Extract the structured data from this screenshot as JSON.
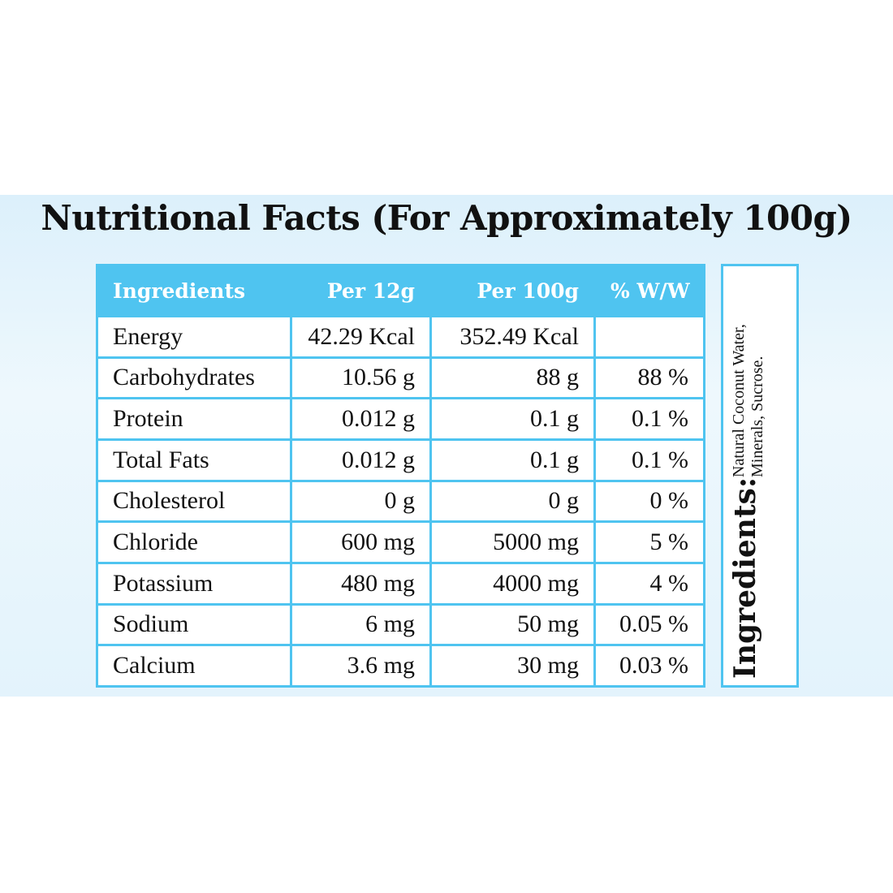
{
  "header": {
    "title": "Nutritional Facts (For Approximately 100g)"
  },
  "table": {
    "columns": [
      "Ingredients",
      "Per 12g",
      "Per 100g",
      "% W/W"
    ],
    "rows": [
      [
        "Energy",
        "42.29 Kcal",
        "352.49 Kcal",
        null
      ],
      [
        "Carbohydrates",
        "10.56 g",
        "88 g",
        "88 %"
      ],
      [
        "Protein",
        "0.012 g",
        "0.1 g",
        "0.1 %"
      ],
      [
        "Total Fats",
        "0.012 g",
        "0.1 g",
        "0.1 %"
      ],
      [
        "Cholesterol",
        "0 g",
        "0 g",
        "0 %"
      ],
      [
        "Chloride",
        "600 mg",
        "5000 mg",
        "5 %"
      ],
      [
        "Potassium",
        "480 mg",
        "4000 mg",
        "4 %"
      ],
      [
        "Sodium",
        "6 mg",
        "50 mg",
        "0.05 %"
      ],
      [
        "Calcium",
        "3.6 mg",
        "30 mg",
        "0.03 %"
      ]
    ]
  },
  "side": {
    "label": "Ingredients:",
    "text": "Natural Coconut Water, Minerals, Sucrose."
  }
}
